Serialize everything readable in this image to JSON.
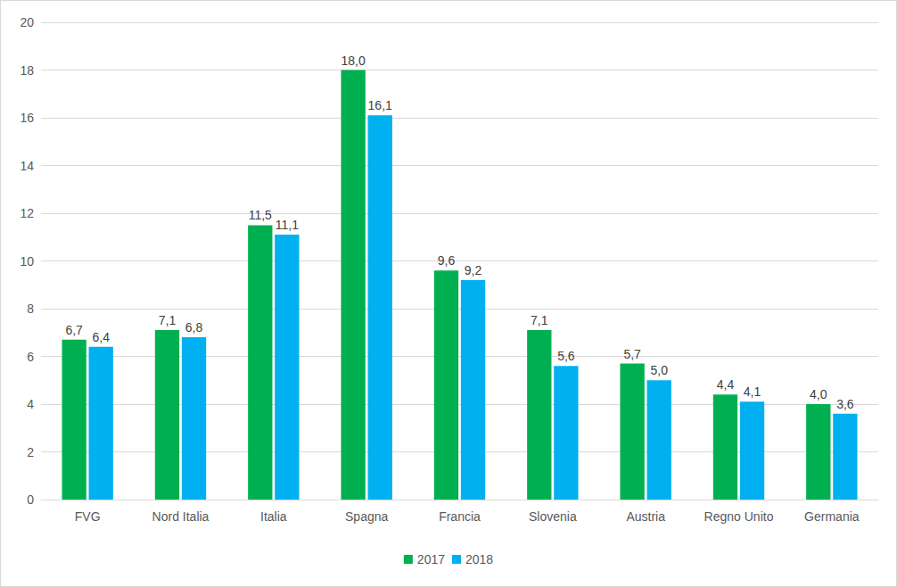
{
  "chart_data": {
    "type": "bar",
    "categories": [
      "FVG",
      "Nord Italia",
      "Italia",
      "Spagna",
      "Francia",
      "Slovenia",
      "Austria",
      "Regno Unito",
      "Germania"
    ],
    "series": [
      {
        "name": "2017",
        "color": "#00b050",
        "values": [
          6.7,
          7.1,
          11.5,
          18.0,
          9.6,
          7.1,
          5.7,
          4.4,
          4.0
        ],
        "value_labels": [
          "6,7",
          "7,1",
          "11,5",
          "18,0",
          "9,6",
          "7,1",
          "5,7",
          "4,4",
          "4,0"
        ]
      },
      {
        "name": "2018",
        "color": "#00b0f0",
        "values": [
          6.4,
          6.8,
          11.1,
          16.1,
          9.2,
          5.6,
          5.0,
          4.1,
          3.6
        ],
        "value_labels": [
          "6,4",
          "6,8",
          "11,1",
          "16,1",
          "9,2",
          "5,6",
          "5,0",
          "4,1",
          "3,6"
        ]
      }
    ],
    "ylim": [
      0,
      20
    ],
    "yticks": [
      0,
      2,
      4,
      6,
      8,
      10,
      12,
      14,
      16,
      18,
      20
    ],
    "grid": true,
    "data_labels": true,
    "legend": "bottom"
  }
}
